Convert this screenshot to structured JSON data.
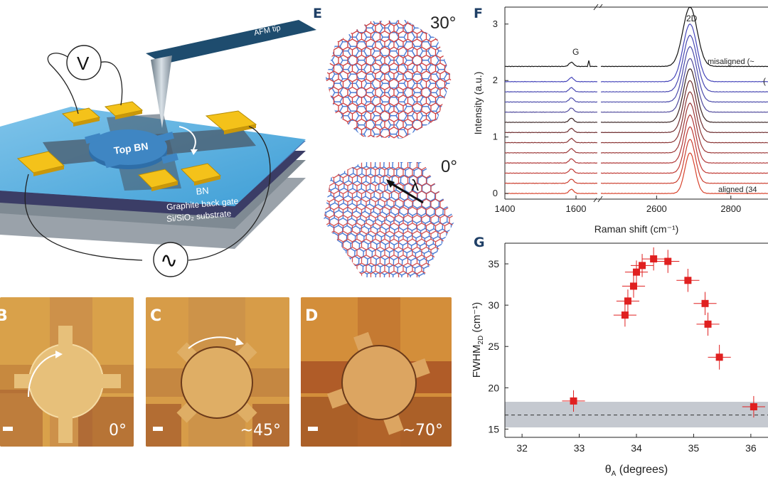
{
  "panel_a": {
    "afm_tip": "AFM tip",
    "voltmeter": "V",
    "top_bn": "Top BN",
    "bn": "BN",
    "graphite_gate": "Graphite back gate",
    "substrate": "Si/SiO₂ substrate",
    "ac_source": "∿"
  },
  "afm_images": [
    {
      "letter": "B",
      "angle": "0°"
    },
    {
      "letter": "C",
      "angle": "~45°"
    },
    {
      "letter": "D",
      "angle": "~70°"
    }
  ],
  "panel_e": {
    "letter": "E",
    "top_angle": "30°",
    "bottom_angle": "0°",
    "lambda": "λ"
  },
  "panel_f": {
    "letter": "F",
    "ylabel": "Intensity (a.u.)",
    "xlabel": "Raman shift (cm⁻¹)",
    "peak_g": "G",
    "peak_2d": "2D",
    "label_misaligned": "misaligned (~",
    "label_aligned": "aligned (34",
    "label_edge": "(",
    "yticks": [
      "0",
      "1",
      "2",
      "3"
    ],
    "xticks": [
      "1400",
      "1600",
      "2600",
      "2800"
    ]
  },
  "panel_g": {
    "letter": "G",
    "ylabel_main": "FWHM",
    "ylabel_sub": "2D",
    "ylabel_unit": " (cm⁻¹)",
    "xlabel_main": "θ",
    "xlabel_sub": "A",
    "xlabel_unit": " (degrees)",
    "xticks": [
      "32",
      "33",
      "34",
      "35",
      "36"
    ],
    "yticks": [
      "15",
      "20",
      "25",
      "30",
      "35"
    ]
  },
  "chart_data": [
    {
      "type": "line",
      "panel": "F",
      "xlabel": "Raman shift (cm⁻¹)",
      "ylabel": "Intensity (a.u.)",
      "x_break": [
        1660,
        2450
      ],
      "ylim": [
        -0.1,
        3.3
      ],
      "series_offsets": [
        0.0,
        0.18,
        0.36,
        0.54,
        0.72,
        0.9,
        1.08,
        1.26,
        1.44,
        1.62,
        1.8,
        1.98,
        2.25
      ],
      "series_colors": [
        "#d8432c",
        "#cc4030",
        "#c03a34",
        "#b03838",
        "#9c3838",
        "#8a3434",
        "#6e2e30",
        "#3a2424",
        "#504a9c",
        "#4a4aaa",
        "#4848b2",
        "#4444ba",
        "#111111"
      ],
      "peak_2d_height": [
        0.72,
        0.78,
        0.82,
        0.85,
        0.88,
        0.9,
        0.92,
        0.95,
        0.95,
        0.98,
        1.0,
        1.02,
        1.05
      ],
      "g_peak_x": 1587,
      "peak_2d_x": 2690
    },
    {
      "type": "scatter",
      "panel": "G",
      "xlim": [
        31.7,
        36.3
      ],
      "ylim": [
        14,
        37.5
      ],
      "points": [
        {
          "x": 32.9,
          "y": 18.4,
          "xerr": 0.2,
          "yerr": 1.3
        },
        {
          "x": 33.8,
          "y": 28.8,
          "xerr": 0.2,
          "yerr": 1.4
        },
        {
          "x": 33.85,
          "y": 30.5,
          "xerr": 0.2,
          "yerr": 1.4
        },
        {
          "x": 33.95,
          "y": 32.3,
          "xerr": 0.2,
          "yerr": 1.4
        },
        {
          "x": 34.0,
          "y": 34.0,
          "xerr": 0.2,
          "yerr": 1.4
        },
        {
          "x": 34.1,
          "y": 34.8,
          "xerr": 0.2,
          "yerr": 1.4
        },
        {
          "x": 34.3,
          "y": 35.6,
          "xerr": 0.2,
          "yerr": 1.4
        },
        {
          "x": 34.55,
          "y": 35.3,
          "xerr": 0.2,
          "yerr": 1.4
        },
        {
          "x": 34.9,
          "y": 33.0,
          "xerr": 0.2,
          "yerr": 1.4
        },
        {
          "x": 35.2,
          "y": 30.2,
          "xerr": 0.2,
          "yerr": 1.4
        },
        {
          "x": 35.25,
          "y": 27.7,
          "xerr": 0.2,
          "yerr": 1.4
        },
        {
          "x": 35.45,
          "y": 23.7,
          "xerr": 0.2,
          "yerr": 1.5
        },
        {
          "x": 36.05,
          "y": 17.7,
          "xerr": 0.2,
          "yerr": 1.3
        }
      ],
      "band": [
        15.2,
        18.3
      ],
      "baseline": 16.7,
      "point_color": "#e02020",
      "band_color": "#c5c9d0"
    }
  ]
}
